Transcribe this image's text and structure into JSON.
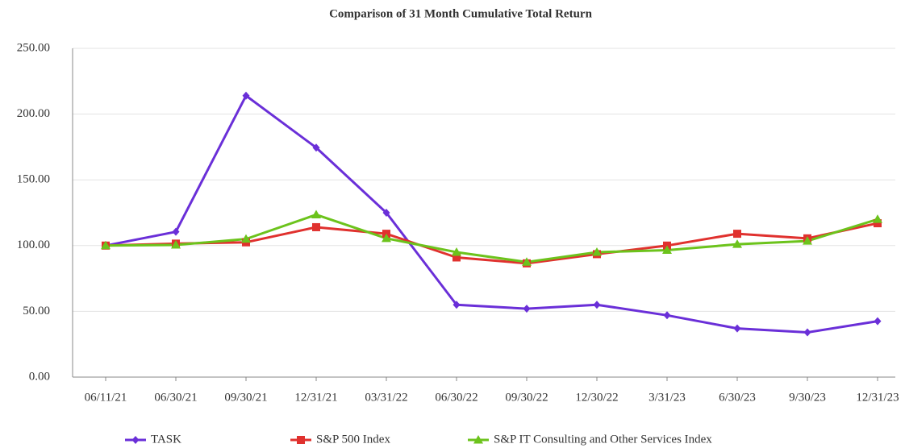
{
  "chart_data": {
    "type": "line",
    "title": "Comparison of 31 Month Cumulative Total Return",
    "categories": [
      "06/11/21",
      "06/30/21",
      "09/30/21",
      "12/31/21",
      "03/31/22",
      "06/30/22",
      "09/30/22",
      "12/30/22",
      "3/31/23",
      "6/30/23",
      "9/30/23",
      "12/31/23"
    ],
    "series": [
      {
        "name": "TASK",
        "color": "#6a2fd8",
        "marker": "diamond",
        "values": [
          100,
          110.5,
          214,
          174.5,
          125,
          55,
          52,
          55,
          47,
          37,
          34,
          42.5
        ]
      },
      {
        "name": "S&P 500 Index",
        "color": "#e0312e",
        "marker": "square",
        "values": [
          100,
          101.5,
          102.5,
          114,
          109,
          91,
          86.5,
          93.5,
          100,
          109,
          105.5,
          117
        ]
      },
      {
        "name": "S&P IT Consulting and Other Services Index",
        "color": "#6cc31c",
        "marker": "triangle",
        "values": [
          100,
          100.5,
          105,
          123.5,
          105.5,
          95,
          87.5,
          95,
          96.5,
          101,
          103.5,
          120
        ]
      }
    ],
    "ylim": [
      0,
      250
    ],
    "yticks": [
      {
        "value": 0,
        "label": "0.00"
      },
      {
        "value": 50,
        "label": "50.00"
      },
      {
        "value": 100,
        "label": "100.00"
      },
      {
        "value": 150,
        "label": "150.00"
      },
      {
        "value": 200,
        "label": "200.00"
      },
      {
        "value": 250,
        "label": "250.00"
      }
    ],
    "grid": true,
    "legend": "bottom"
  }
}
